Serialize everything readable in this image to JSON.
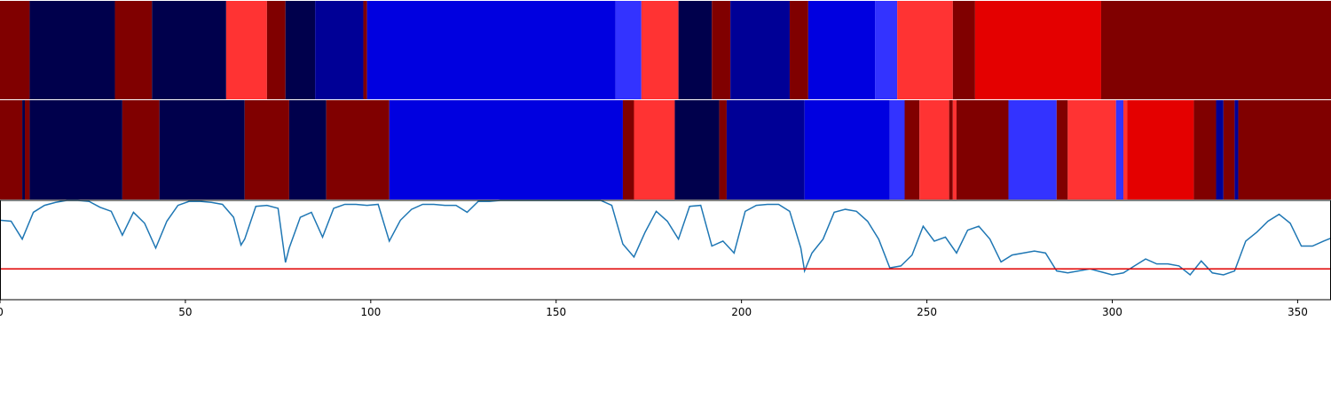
{
  "chart_data": [
    {
      "type": "heatmap",
      "xlim": [
        0,
        359
      ],
      "edges": [
        0,
        8,
        31,
        41,
        61,
        72,
        77,
        85,
        98,
        99,
        166,
        173,
        183,
        192,
        197,
        213,
        218,
        236,
        242,
        257,
        263,
        297,
        359
      ],
      "colors": [
        "#800000",
        "#00004c",
        "#800000",
        "#00004c",
        "#ff3333",
        "#800000",
        "#00004c",
        "#000096",
        "#800000",
        "#0000e0",
        "#3333ff",
        "#ff3333",
        "#00004c",
        "#800000",
        "#000096",
        "#800000",
        "#0000e0",
        "#3333ff",
        "#ff3333",
        "#800000",
        "#e40000",
        "#800000"
      ]
    },
    {
      "type": "heatmap",
      "xlim": [
        0,
        359
      ],
      "edges": [
        0,
        6,
        6.7,
        8,
        33,
        43,
        66,
        78,
        88,
        105,
        168,
        171,
        182,
        194,
        196,
        217,
        240,
        244,
        248,
        256,
        257,
        258,
        272,
        285,
        288,
        301,
        303,
        304,
        322,
        328,
        330,
        333,
        334,
        359
      ],
      "colors": [
        "#800000",
        "#00004c",
        "#800000",
        "#00004c",
        "#800000",
        "#00004c",
        "#800000",
        "#00004c",
        "#800000",
        "#0000e0",
        "#800000",
        "#ff3333",
        "#00004c",
        "#800000",
        "#000096",
        "#0000e0",
        "#3333ff",
        "#800000",
        "#ff3333",
        "#800000",
        "#ff3333",
        "#800000",
        "#3333ff",
        "#800000",
        "#ff3333",
        "#3333ff",
        "#ff3333",
        "#e40000",
        "#800000",
        "#000096",
        "#800000",
        "#000096",
        "#800000"
      ]
    },
    {
      "type": "line",
      "xlim": [
        0,
        359
      ],
      "xticks": [
        0,
        50,
        100,
        150,
        200,
        250,
        300,
        350
      ],
      "ylim": [
        0,
        1
      ],
      "x": [
        0,
        3,
        6,
        9,
        12,
        15,
        18,
        21,
        24,
        27,
        30,
        33,
        36,
        39,
        42,
        45,
        48,
        51,
        54,
        57,
        60,
        63,
        65,
        66,
        69,
        72,
        75,
        77,
        78,
        81,
        84,
        87,
        90,
        93,
        96,
        99,
        102,
        105,
        108,
        111,
        114,
        117,
        120,
        123,
        126,
        129,
        132,
        135,
        162,
        165,
        168,
        171,
        174,
        177,
        180,
        183,
        186,
        189,
        192,
        195,
        198,
        201,
        204,
        207,
        210,
        213,
        216,
        217,
        219,
        222,
        225,
        228,
        231,
        234,
        237,
        240,
        243,
        246,
        249,
        252,
        255,
        258,
        261,
        264,
        267,
        270,
        273,
        276,
        279,
        282,
        285,
        288,
        291,
        294,
        297,
        300,
        303,
        306,
        309,
        312,
        315,
        318,
        321,
        324,
        327,
        330,
        333,
        336,
        339,
        342,
        345,
        348,
        351,
        354,
        357,
        359
      ],
      "series": [
        {
          "color": "#1f77b4",
          "values": [
            0.8,
            0.79,
            0.61,
            0.88,
            0.95,
            0.98,
            1.0,
            1.0,
            0.99,
            0.93,
            0.89,
            0.65,
            0.88,
            0.77,
            0.52,
            0.79,
            0.95,
            0.99,
            0.99,
            0.98,
            0.96,
            0.83,
            0.55,
            0.61,
            0.94,
            0.95,
            0.92,
            0.375,
            0.52,
            0.83,
            0.88,
            0.63,
            0.92,
            0.96,
            0.96,
            0.95,
            0.96,
            0.59,
            0.8,
            0.91,
            0.96,
            0.96,
            0.95,
            0.95,
            0.88,
            0.99,
            0.99,
            1.0,
            1.0,
            0.95,
            0.56,
            0.43,
            0.68,
            0.89,
            0.79,
            0.61,
            0.94,
            0.95,
            0.54,
            0.59,
            0.47,
            0.89,
            0.95,
            0.96,
            0.96,
            0.89,
            0.52,
            0.29,
            0.47,
            0.61,
            0.88,
            0.91,
            0.89,
            0.79,
            0.61,
            0.32,
            0.34,
            0.45,
            0.74,
            0.59,
            0.63,
            0.47,
            0.7,
            0.74,
            0.61,
            0.38,
            0.45,
            0.47,
            0.49,
            0.47,
            0.29,
            0.27,
            0.29,
            0.31,
            0.28,
            0.25,
            0.27,
            0.34,
            0.41,
            0.36,
            0.36,
            0.34,
            0.25,
            0.39,
            0.27,
            0.25,
            0.29,
            0.59,
            0.68,
            0.79,
            0.86,
            0.77,
            0.54,
            0.54,
            0.59,
            0.62
          ]
        }
      ],
      "hline": {
        "value": 0.31,
        "color": "#e00000"
      }
    }
  ]
}
